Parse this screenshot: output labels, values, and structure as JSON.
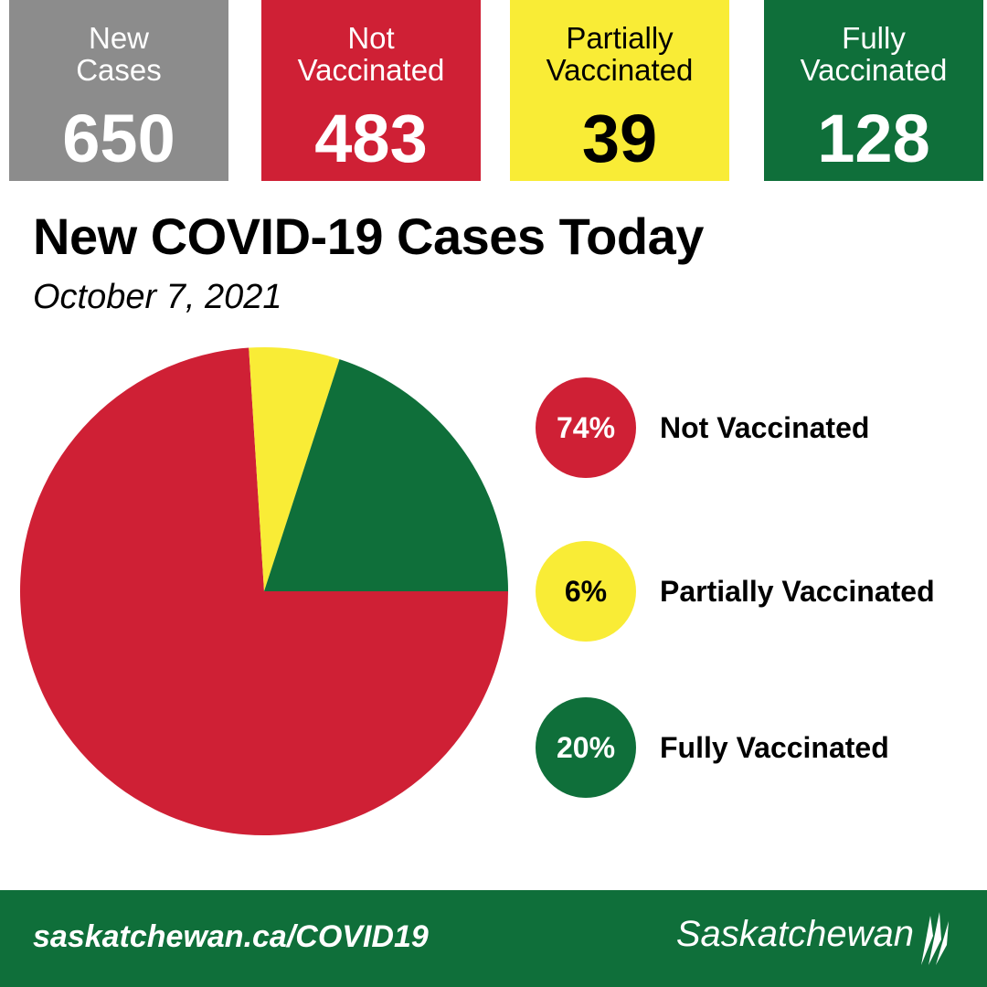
{
  "stats": [
    {
      "label": "New\nCases",
      "value": "650",
      "bg": "#8c8c8c",
      "fg": "#ffffff"
    },
    {
      "label": "Not\nVaccinated",
      "value": "483",
      "bg": "#cf2035",
      "fg": "#ffffff"
    },
    {
      "label": "Partially\nVaccinated",
      "value": "39",
      "bg": "#f9ec36",
      "fg": "#000000"
    },
    {
      "label": "Fully\nVaccinated",
      "value": "128",
      "bg": "#0f6f3a",
      "fg": "#ffffff"
    }
  ],
  "title": "New COVID-19 Cases Today",
  "date": "October 7, 2021",
  "chart_data": {
    "type": "pie",
    "title": "",
    "categories": [
      "Not Vaccinated",
      "Partially Vaccinated",
      "Fully Vaccinated"
    ],
    "values": [
      74,
      6,
      20
    ],
    "value_labels": [
      "74%",
      "6%",
      "20%"
    ],
    "colors": [
      "#cf2035",
      "#f9ec36",
      "#0f6f3a"
    ],
    "label_colors": [
      "#ffffff",
      "#000000",
      "#ffffff"
    ],
    "legend_placement": "right"
  },
  "footer": {
    "url": "saskatchewan.ca/COVID19",
    "logo_text": "Saskatchewan",
    "logo_mark": "wheat-sheaf-icon"
  }
}
